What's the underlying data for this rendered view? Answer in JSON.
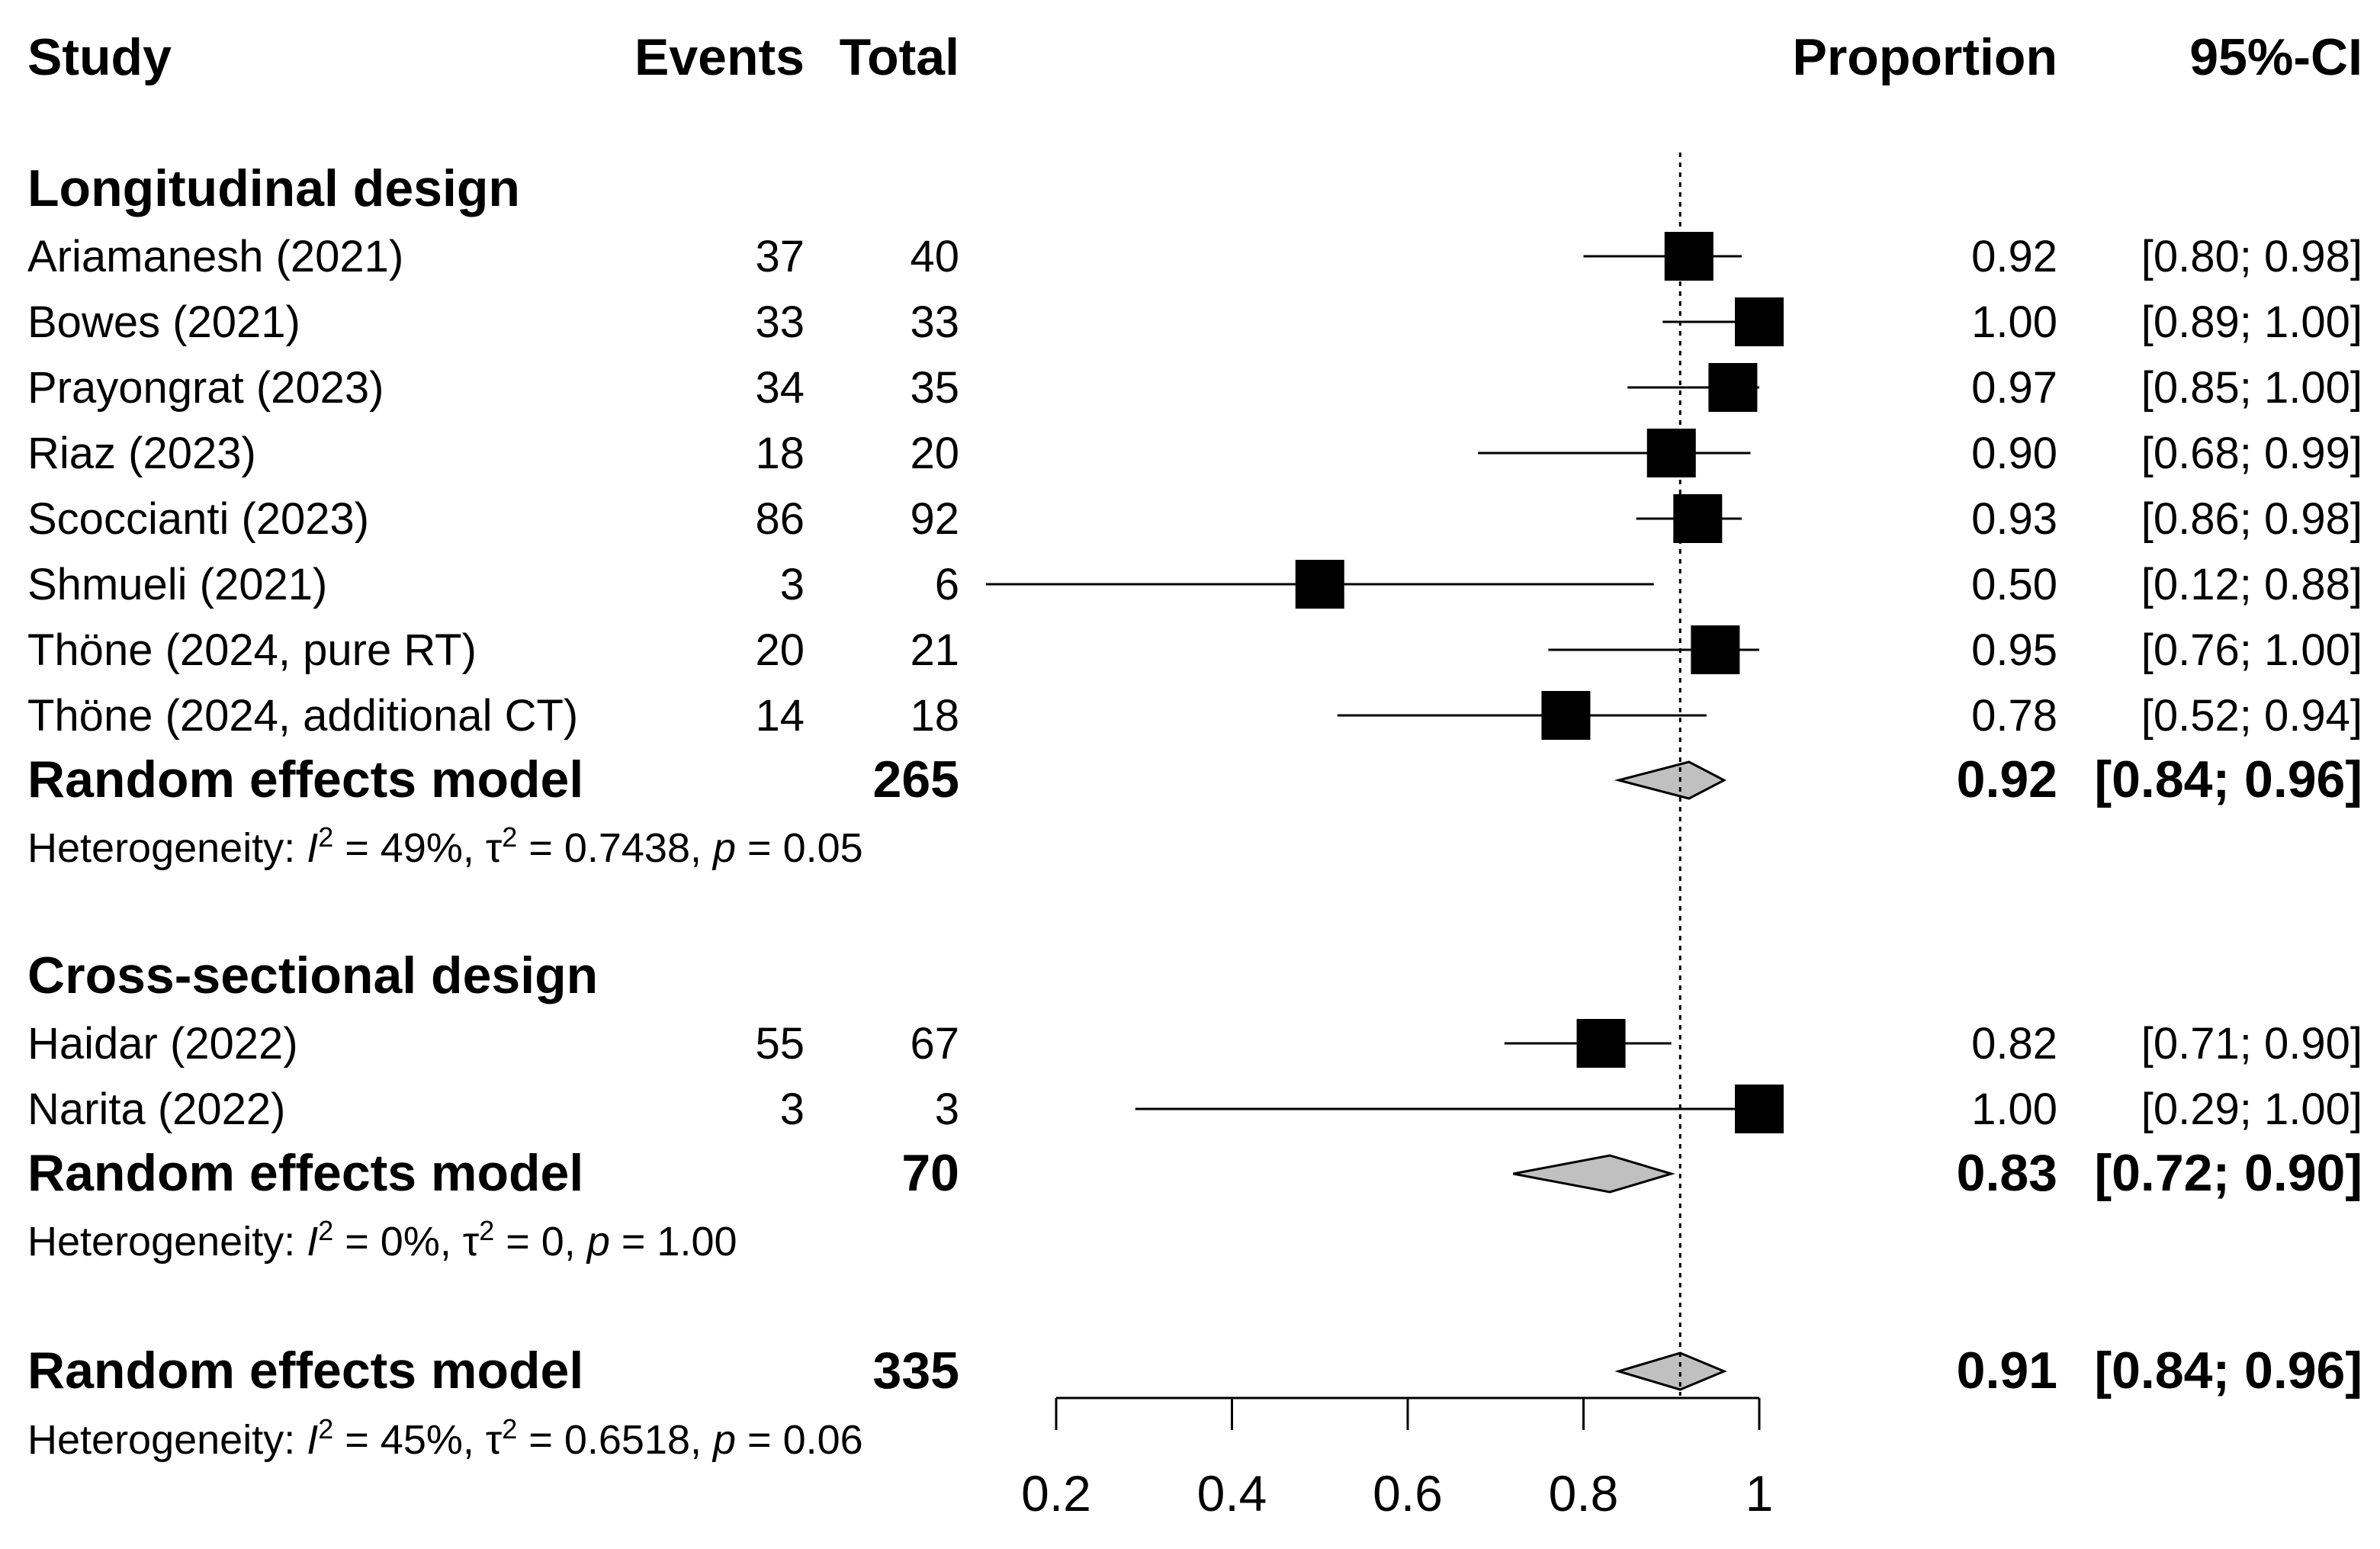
{
  "chart_data": {
    "type": "forest",
    "columns": {
      "study": "Study",
      "events": "Events",
      "total": "Total",
      "proportion": "Proportion",
      "ci": "95%-CI"
    },
    "xlim": [
      0.2,
      1
    ],
    "xticks": [
      "0.2",
      "0.4",
      "0.6",
      "0.8",
      "1"
    ],
    "reference_line": 0.91,
    "groups": [
      {
        "title": "Longitudinal design",
        "studies": [
          {
            "name": "Ariamanesh (2021)",
            "events": "37",
            "total": "40",
            "prop": 0.92,
            "lo": 0.8,
            "hi": 0.98,
            "prop_text": "0.92",
            "ci_text": "[0.80; 0.98]"
          },
          {
            "name": "Bowes (2021)",
            "events": "33",
            "total": "33",
            "prop": 1.0,
            "lo": 0.89,
            "hi": 1.0,
            "prop_text": "1.00",
            "ci_text": "[0.89; 1.00]"
          },
          {
            "name": "Prayongrat (2023)",
            "events": "34",
            "total": "35",
            "prop": 0.97,
            "lo": 0.85,
            "hi": 1.0,
            "prop_text": "0.97",
            "ci_text": "[0.85; 1.00]"
          },
          {
            "name": "Riaz (2023)",
            "events": "18",
            "total": "20",
            "prop": 0.9,
            "lo": 0.68,
            "hi": 0.99,
            "prop_text": "0.90",
            "ci_text": "[0.68; 0.99]"
          },
          {
            "name": "Scoccianti (2023)",
            "events": "86",
            "total": "92",
            "prop": 0.93,
            "lo": 0.86,
            "hi": 0.98,
            "prop_text": "0.93",
            "ci_text": "[0.86; 0.98]"
          },
          {
            "name": "Shmueli (2021)",
            "events": "3",
            "total": "6",
            "prop": 0.5,
            "lo": 0.12,
            "hi": 0.88,
            "prop_text": "0.50",
            "ci_text": "[0.12; 0.88]"
          },
          {
            "name": "Thöne (2024, pure RT)",
            "events": "20",
            "total": "21",
            "prop": 0.95,
            "lo": 0.76,
            "hi": 1.0,
            "prop_text": "0.95",
            "ci_text": "[0.76; 1.00]"
          },
          {
            "name": "Thöne (2024, additional CT)",
            "events": "14",
            "total": "18",
            "prop": 0.78,
            "lo": 0.52,
            "hi": 0.94,
            "prop_text": "0.78",
            "ci_text": "[0.52; 0.94]"
          }
        ],
        "model": {
          "label": "Random effects model",
          "total": "265",
          "prop": 0.92,
          "lo": 0.84,
          "hi": 0.96,
          "prop_text": "0.92",
          "ci_text": "[0.84; 0.96]"
        },
        "heterogeneity": {
          "prefix": "Heterogeneity: ",
          "i2_symbol": "I",
          "i2": " = 49%, ",
          "tau": "τ",
          "tau2": " = 0.7438, ",
          "p": "p",
          "pval": " = 0.05"
        }
      },
      {
        "title": "Cross-sectional design",
        "studies": [
          {
            "name": "Haidar (2022)",
            "events": "55",
            "total": "67",
            "prop": 0.82,
            "lo": 0.71,
            "hi": 0.9,
            "prop_text": "0.82",
            "ci_text": "[0.71; 0.90]"
          },
          {
            "name": "Narita (2022)",
            "events": "3",
            "total": "3",
            "prop": 1.0,
            "lo": 0.29,
            "hi": 1.0,
            "prop_text": "1.00",
            "ci_text": "[0.29; 1.00]"
          }
        ],
        "model": {
          "label": "Random effects model",
          "total": "70",
          "prop": 0.83,
          "lo": 0.72,
          "hi": 0.9,
          "prop_text": "0.83",
          "ci_text": "[0.72; 0.90]"
        },
        "heterogeneity": {
          "prefix": "Heterogeneity: ",
          "i2_symbol": "I",
          "i2": " = 0%, ",
          "tau": "τ",
          "tau2": " = 0, ",
          "p": "p",
          "pval": " = 1.00"
        }
      }
    ],
    "overall": {
      "model": {
        "label": "Random effects model",
        "total": "335",
        "prop": 0.91,
        "lo": 0.84,
        "hi": 0.96,
        "prop_text": "0.91",
        "ci_text": "[0.84; 0.96]"
      },
      "heterogeneity": {
        "prefix": "Heterogeneity: ",
        "i2_symbol": "I",
        "i2": " = 45%, ",
        "tau": "τ",
        "tau2": " = 0.6518, ",
        "p": "p",
        "pval": " = 0.06"
      }
    }
  }
}
